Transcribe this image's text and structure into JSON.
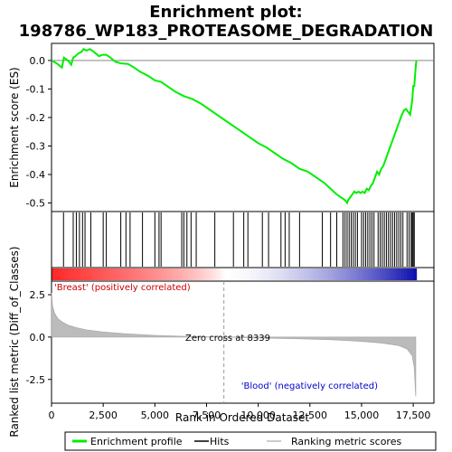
{
  "chart_data": {
    "type": "line",
    "title_line1": "Enrichment plot:",
    "title_line2": "198786_WP183_PROTEASOME_DEGRADATION",
    "top_panel": {
      "ylabel": "Enrichment score (ES)",
      "ylim": [
        -0.53,
        0.06
      ],
      "yticks": [
        0.0,
        -0.1,
        -0.2,
        -0.3,
        -0.4,
        -0.5
      ],
      "ytick_labels": [
        "0.0",
        "-0.1",
        "-0.2",
        "-0.3",
        "-0.4",
        "-0.5"
      ],
      "series_color": "#00ee00",
      "es_profile": [
        [
          0,
          0.0
        ],
        [
          250,
          -0.01
        ],
        [
          500,
          -0.025
        ],
        [
          600,
          0.01
        ],
        [
          800,
          0.0
        ],
        [
          950,
          -0.015
        ],
        [
          1050,
          0.01
        ],
        [
          1150,
          0.015
        ],
        [
          1300,
          0.025
        ],
        [
          1450,
          0.03
        ],
        [
          1550,
          0.04
        ],
        [
          1700,
          0.035
        ],
        [
          1850,
          0.04
        ],
        [
          2050,
          0.03
        ],
        [
          2300,
          0.015
        ],
        [
          2450,
          0.02
        ],
        [
          2650,
          0.02
        ],
        [
          2850,
          0.01
        ],
        [
          3100,
          -0.005
        ],
        [
          3350,
          -0.01
        ],
        [
          3700,
          -0.012
        ],
        [
          4000,
          -0.025
        ],
        [
          4300,
          -0.04
        ],
        [
          4700,
          -0.055
        ],
        [
          5000,
          -0.07
        ],
        [
          5300,
          -0.075
        ],
        [
          5600,
          -0.09
        ],
        [
          6000,
          -0.11
        ],
        [
          6400,
          -0.125
        ],
        [
          6800,
          -0.135
        ],
        [
          7200,
          -0.15
        ],
        [
          7600,
          -0.17
        ],
        [
          8000,
          -0.19
        ],
        [
          8400,
          -0.21
        ],
        [
          8800,
          -0.23
        ],
        [
          9200,
          -0.25
        ],
        [
          9600,
          -0.27
        ],
        [
          10000,
          -0.29
        ],
        [
          10400,
          -0.305
        ],
        [
          10800,
          -0.325
        ],
        [
          11200,
          -0.345
        ],
        [
          11600,
          -0.36
        ],
        [
          12000,
          -0.38
        ],
        [
          12400,
          -0.39
        ],
        [
          12800,
          -0.41
        ],
        [
          13200,
          -0.43
        ],
        [
          13500,
          -0.45
        ],
        [
          13800,
          -0.47
        ],
        [
          14100,
          -0.485
        ],
        [
          14200,
          -0.49
        ],
        [
          14300,
          -0.5
        ],
        [
          14350,
          -0.49
        ],
        [
          14450,
          -0.48
        ],
        [
          14550,
          -0.47
        ],
        [
          14650,
          -0.46
        ],
        [
          14750,
          -0.465
        ],
        [
          14850,
          -0.46
        ],
        [
          14950,
          -0.465
        ],
        [
          15050,
          -0.46
        ],
        [
          15150,
          -0.465
        ],
        [
          15250,
          -0.45
        ],
        [
          15350,
          -0.455
        ],
        [
          15450,
          -0.44
        ],
        [
          15550,
          -0.43
        ],
        [
          15650,
          -0.41
        ],
        [
          15750,
          -0.39
        ],
        [
          15850,
          -0.4
        ],
        [
          15950,
          -0.38
        ],
        [
          16050,
          -0.37
        ],
        [
          16150,
          -0.35
        ],
        [
          16250,
          -0.33
        ],
        [
          16350,
          -0.31
        ],
        [
          16450,
          -0.29
        ],
        [
          16550,
          -0.27
        ],
        [
          16650,
          -0.25
        ],
        [
          16750,
          -0.23
        ],
        [
          16850,
          -0.21
        ],
        [
          16950,
          -0.19
        ],
        [
          17050,
          -0.175
        ],
        [
          17150,
          -0.17
        ],
        [
          17250,
          -0.18
        ],
        [
          17350,
          -0.19
        ],
        [
          17450,
          -0.14
        ],
        [
          17500,
          -0.09
        ],
        [
          17550,
          -0.09
        ],
        [
          17600,
          -0.04
        ],
        [
          17650,
          0.0
        ]
      ],
      "hits": [
        580,
        1050,
        1200,
        1350,
        1500,
        1620,
        1900,
        2500,
        2650,
        3350,
        3600,
        3800,
        4400,
        5000,
        5200,
        5300,
        6300,
        6400,
        6550,
        6750,
        7000,
        7900,
        8800,
        9300,
        9500,
        10200,
        10500,
        11100,
        11300,
        11500,
        12000,
        13100,
        13500,
        13800,
        14100,
        14200,
        14300,
        14400,
        14500,
        14600,
        14700,
        14800,
        15000,
        15100,
        15200,
        15300,
        15400,
        15500,
        15600,
        15800,
        15900,
        16000,
        16100,
        16200,
        16300,
        16400,
        16500,
        16600,
        16700,
        16800,
        16900,
        17000,
        17200,
        17300,
        17400,
        17450,
        17500,
        17550
      ]
    },
    "bottom_panel": {
      "ylabel": "Ranked list metric (Diff_of_Classes)",
      "ylim": [
        -3.9,
        3.3
      ],
      "yticks": [
        2.5,
        0.0,
        -2.5
      ],
      "ytick_labels": [
        "2.5",
        "0.0",
        "-2.5"
      ],
      "metric_curve": [
        [
          0,
          2.6
        ],
        [
          50,
          1.8
        ],
        [
          150,
          1.4
        ],
        [
          300,
          1.1
        ],
        [
          500,
          0.9
        ],
        [
          800,
          0.7
        ],
        [
          1200,
          0.55
        ],
        [
          1700,
          0.42
        ],
        [
          2500,
          0.3
        ],
        [
          3500,
          0.2
        ],
        [
          5000,
          0.1
        ],
        [
          6500,
          0.04
        ],
        [
          8339,
          0.0
        ],
        [
          10000,
          -0.05
        ],
        [
          12000,
          -0.1
        ],
        [
          13500,
          -0.15
        ],
        [
          15000,
          -0.25
        ],
        [
          16000,
          -0.35
        ],
        [
          16800,
          -0.5
        ],
        [
          17200,
          -0.7
        ],
        [
          17450,
          -1.1
        ],
        [
          17550,
          -1.8
        ],
        [
          17620,
          -3.5
        ]
      ],
      "xlabel": "Rank in Ordered Dataset",
      "xlim": [
        0,
        18500
      ],
      "xticks": [
        0,
        2500,
        5000,
        7500,
        10000,
        12500,
        15000,
        17500
      ],
      "xtick_labels": [
        "0",
        "2,500",
        "5,000",
        "7,500",
        "10,000",
        "12,500",
        "15,000",
        "17,500"
      ],
      "zero_cross_label": "Zero cross at 8339",
      "zero_cross": 8339,
      "pos_label": "'Breast' (positively correlated)",
      "neg_label": "'Blood' (negatively correlated)",
      "pos_color": "#cc0000",
      "neg_color": "#0000cc"
    },
    "legend": {
      "placement": "bottom",
      "items": [
        {
          "label": "Enrichment profile",
          "color": "#00ee00"
        },
        {
          "label": "Hits",
          "color": "#000000"
        },
        {
          "label": "Ranking metric scores",
          "color": "#bbbbbb"
        }
      ]
    },
    "n_genes": 17650
  }
}
